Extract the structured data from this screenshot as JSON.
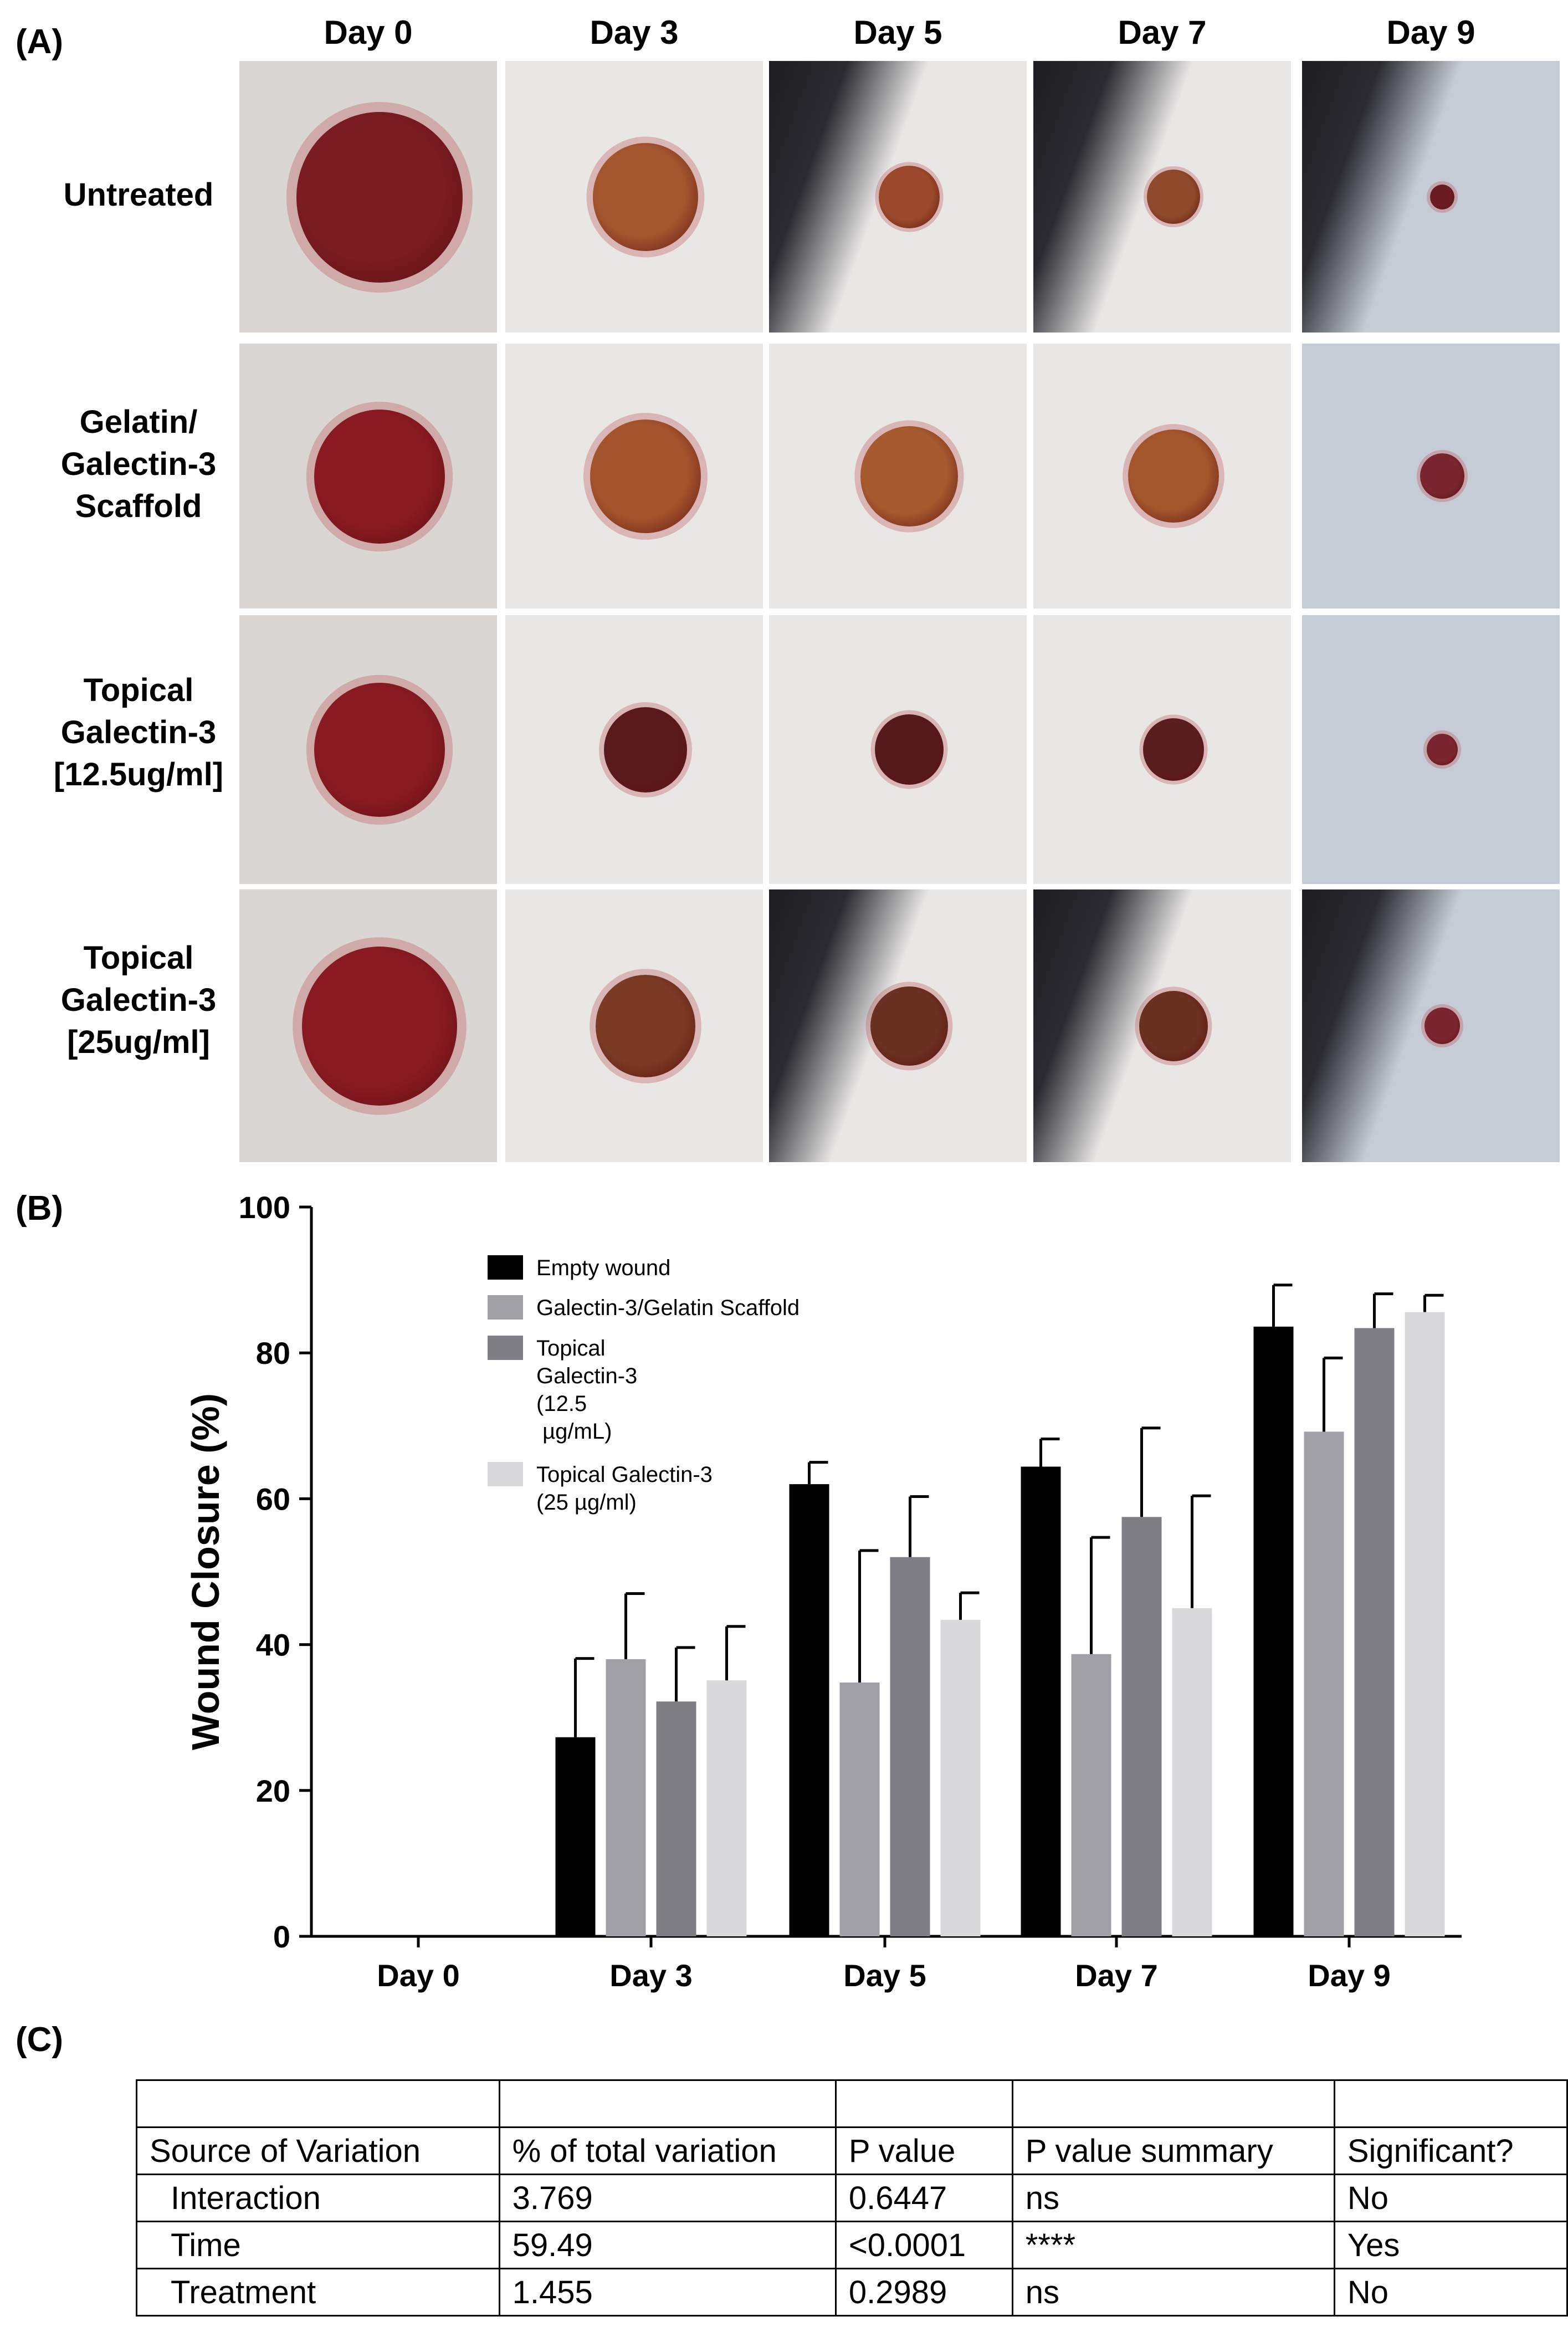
{
  "panels": {
    "a": "(A)",
    "b": "(B)",
    "c": "(C)"
  },
  "photo_grid": {
    "columns": [
      "Day 0",
      "Day 3",
      "Day 5",
      "Day 7",
      "Day 9"
    ],
    "rows": [
      {
        "label_lines": [
          "Untreated"
        ]
      },
      {
        "label_lines": [
          "Gelatin/",
          "Galectin-3",
          "Scaffold"
        ]
      },
      {
        "label_lines": [
          "Topical",
          "Galectin-3",
          "[12.5ug/ml]"
        ]
      },
      {
        "label_lines": [
          "Topical",
          "Galectin-3",
          "[25ug/ml]"
        ]
      }
    ]
  },
  "chart_data": {
    "type": "bar",
    "ylabel": "Wound Closure (%)",
    "xlabel": "",
    "ylim": [
      0,
      100
    ],
    "yticks": [
      0,
      20,
      40,
      60,
      80,
      100
    ],
    "categories": [
      "Day 0",
      "Day 3",
      "Day 5",
      "Day 7",
      "Day 9"
    ],
    "legend_position": "top-left",
    "series": [
      {
        "name": "Empty wound",
        "color": "#000000",
        "values": [
          0,
          27.3,
          62,
          64.4,
          83.6
        ],
        "errors": [
          0,
          10.8,
          3.0,
          3.8,
          5.7
        ]
      },
      {
        "name": "Galectin-3/Gelatin Scaffold",
        "color": "#a0a0a6",
        "values": [
          0,
          38,
          34.8,
          38.7,
          69.2
        ],
        "errors": [
          0,
          9,
          18.1,
          16,
          10.1
        ]
      },
      {
        "name": "Topical\nGalectin-3\n(12.5\n µg/mL)",
        "color": "#7e7e84",
        "values": [
          0,
          32.2,
          52,
          57.5,
          83.4
        ],
        "errors": [
          0,
          7.4,
          8.3,
          12.2,
          4.7
        ]
      },
      {
        "name": "Topical Galectin-3\n(25 µg/ml)",
        "color": "#d9d9db",
        "values": [
          0,
          35.1,
          43.4,
          45,
          85.6
        ],
        "errors": [
          0,
          7.4,
          3.7,
          15.4,
          2.3
        ]
      }
    ]
  },
  "anova": {
    "headers": [
      "Source of Variation",
      "% of total variation",
      "P value",
      "P value summary",
      "Significant?"
    ],
    "rows": [
      [
        "Interaction",
        "3.769",
        "0.6447",
        "ns",
        "No"
      ],
      [
        "Time",
        "59.49",
        "<0.0001",
        "****",
        "Yes"
      ],
      [
        "Treatment",
        "1.455",
        "0.2989",
        "ns",
        "No"
      ]
    ]
  }
}
